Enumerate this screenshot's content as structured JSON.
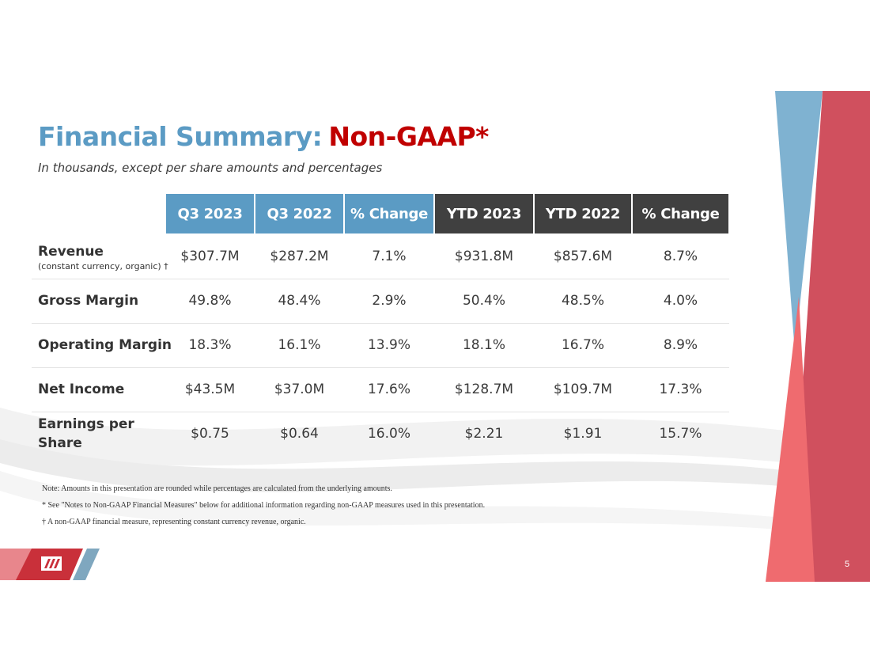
{
  "title": {
    "main": "Financial Summary:",
    "accent": "Non-GAAP*"
  },
  "subtitle": "In thousands, except per share amounts and percentages",
  "headers": [
    "Q3 2023",
    "Q3 2022",
    "% Change",
    "YTD 2023",
    "YTD 2022",
    "% Change"
  ],
  "rows": [
    {
      "label": "Revenue",
      "sublabel": "(constant currency, organic) †",
      "values": [
        "$307.7M",
        "$287.2M",
        "7.1%",
        "$931.8M",
        "$857.6M",
        "8.7%"
      ]
    },
    {
      "label": "Gross Margin",
      "values": [
        "49.8%",
        "48.4%",
        "2.9%",
        "50.4%",
        "48.5%",
        "4.0%"
      ]
    },
    {
      "label": "Operating Margin",
      "values": [
        "18.3%",
        "16.1%",
        "13.9%",
        "18.1%",
        "16.7%",
        "8.9%"
      ]
    },
    {
      "label": "Net Income",
      "values": [
        "$43.5M",
        "$37.0M",
        "17.6%",
        "$128.7M",
        "$109.7M",
        "17.3%"
      ]
    },
    {
      "label": "Earnings per",
      "label2": "Share",
      "values": [
        "$0.75",
        "$0.64",
        "16.0%",
        "$2.21",
        "$1.91",
        "15.7%"
      ]
    }
  ],
  "notes": [
    "Note: Amounts in this presentation are rounded while percentages are calculated from the underlying amounts.",
    "* See \"Notes to Non-GAAP Financial Measures\" below for additional information regarding non-GAAP measures used in this presentation.",
    "† A non-GAAP financial measure, representing constant currency revenue, organic."
  ],
  "page_number": "5",
  "colors": {
    "title_blue": "#5b9bc4",
    "accent_red": "#c00000",
    "header_dark": "#404040",
    "deco_red": "#d0505e",
    "deco_blue": "#7fb2d1"
  },
  "logo_icon": "company-logo-icon"
}
